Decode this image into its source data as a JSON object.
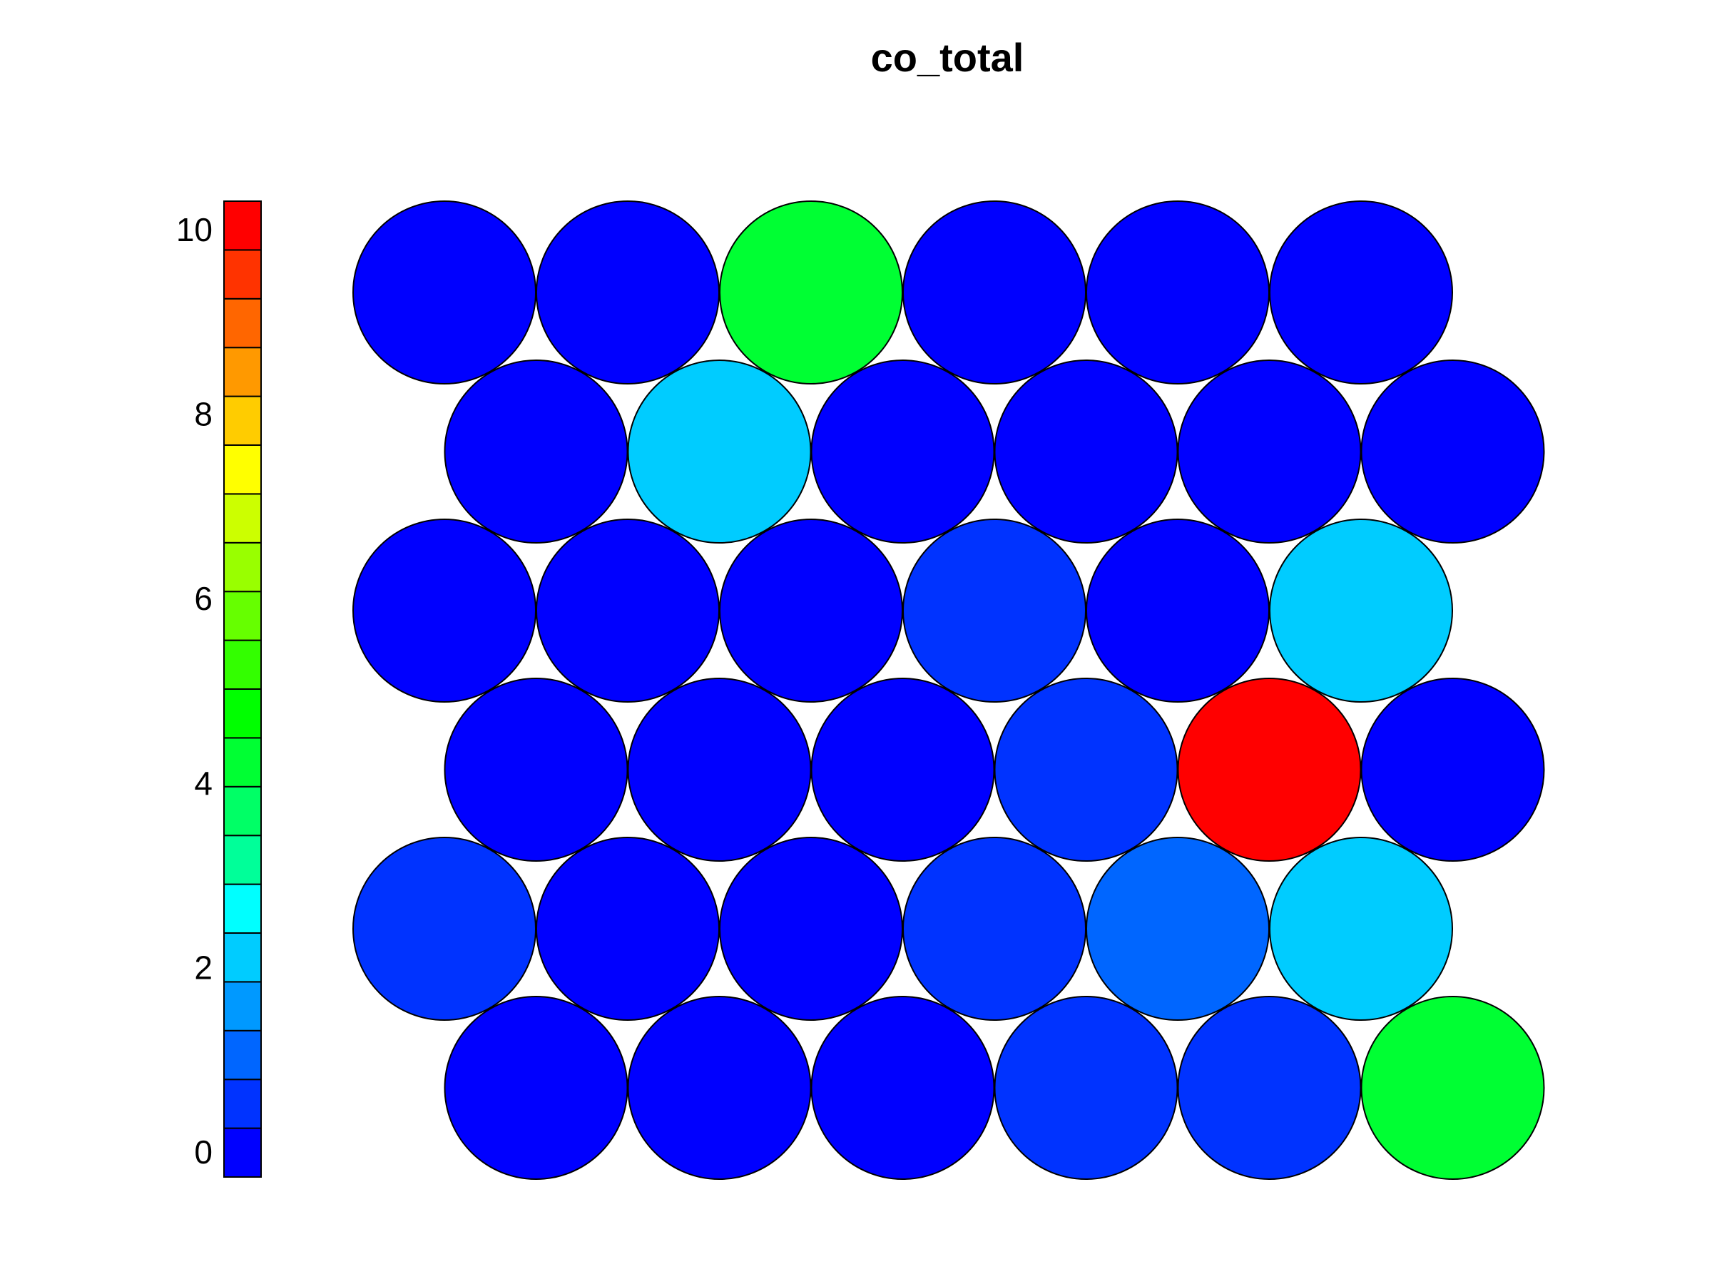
{
  "chart_data": {
    "type": "heatmap",
    "title": "co_total",
    "xlabel": "",
    "ylabel": "",
    "grid": false,
    "legend": "left",
    "scale": {
      "min": 0,
      "max": 10,
      "ticks": [
        0,
        2,
        4,
        6,
        8,
        10
      ],
      "colors": [
        "#0000ff",
        "#0033ff",
        "#0066ff",
        "#0099ff",
        "#00ccff",
        "#00ffff",
        "#00ff99",
        "#00ff66",
        "#00ff33",
        "#00ff00",
        "#33ff00",
        "#66ff00",
        "#99ff00",
        "#ccff00",
        "#ffff00",
        "#ffcc00",
        "#ff9900",
        "#ff6600",
        "#ff3300",
        "#ff0000"
      ]
    },
    "rows": [
      {
        "offset": false,
        "values": [
          0,
          0,
          4,
          0,
          0,
          0
        ]
      },
      {
        "offset": true,
        "values": [
          0,
          2,
          0,
          0,
          0,
          0
        ]
      },
      {
        "offset": false,
        "values": [
          0,
          0,
          0,
          0.6,
          0,
          2.4
        ]
      },
      {
        "offset": true,
        "values": [
          0,
          0,
          0,
          0.6,
          10,
          0
        ]
      },
      {
        "offset": false,
        "values": [
          0.6,
          0,
          0,
          0.6,
          1.2,
          2.4
        ]
      },
      {
        "offset": true,
        "values": [
          0,
          0,
          0,
          0.6,
          0.6,
          4
        ]
      }
    ]
  }
}
